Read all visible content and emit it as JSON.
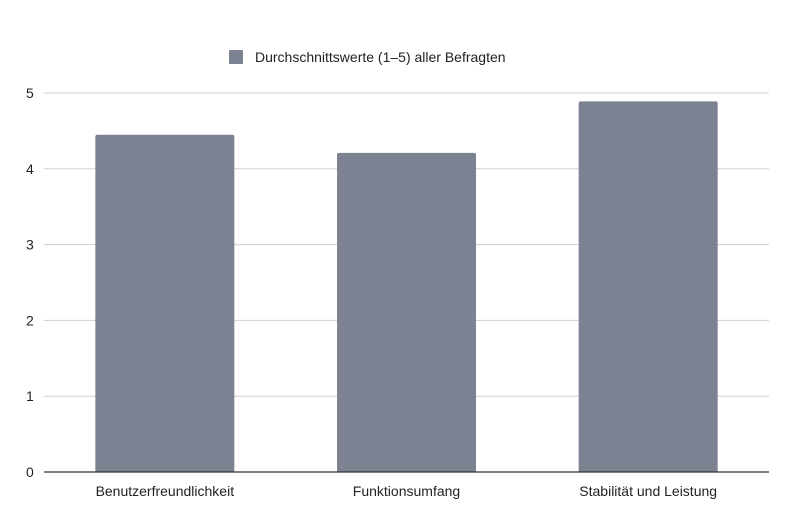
{
  "chart_data": {
    "type": "bar",
    "categories": [
      "Benutzerfreundlichkeit",
      "Funktionsumfang",
      "Stabilität und Leistung"
    ],
    "series": [
      {
        "name": "Durchschnittswerte (1–5) aller Befragten",
        "values": [
          4.45,
          4.21,
          4.89
        ],
        "color": "#7d8292"
      }
    ],
    "ylim": [
      0,
      5
    ],
    "yticks": [
      0,
      1,
      2,
      3,
      4,
      5
    ],
    "grid": true,
    "legend": "top-center",
    "title": "",
    "xlabel": "",
    "ylabel": ""
  }
}
